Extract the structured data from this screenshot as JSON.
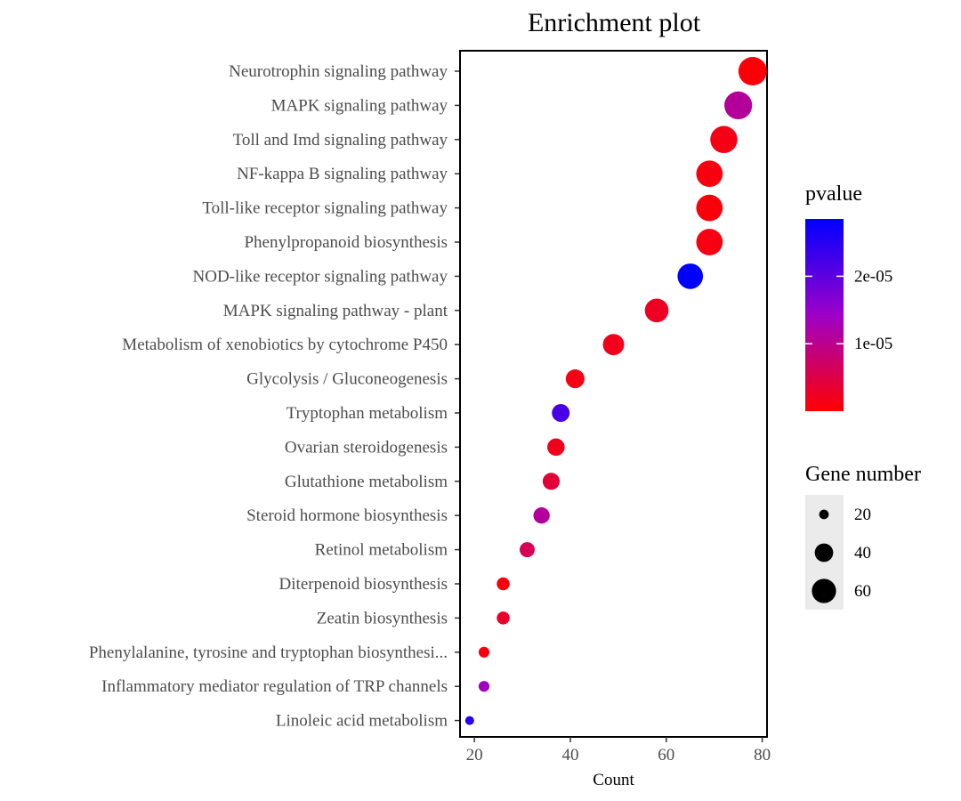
{
  "chart_data": {
    "type": "scatter",
    "title": "Enrichment plot",
    "xlabel": "Count",
    "ylabel": "",
    "xlim": [
      17,
      81
    ],
    "xticks": [
      20,
      40,
      60,
      80
    ],
    "xtick_labels": [
      "20",
      "40",
      "60",
      "80"
    ],
    "categories": [
      "Neurotrophin signaling pathway",
      "MAPK signaling pathway",
      "Toll and Imd signaling pathway",
      "NF-kappa B signaling pathway",
      "Toll-like receptor signaling pathway",
      "Phenylpropanoid biosynthesis",
      "NOD-like receptor signaling pathway",
      "MAPK signaling pathway - plant",
      "Metabolism of xenobiotics by cytochrome P450",
      "Glycolysis / Gluconeogenesis",
      "Tryptophan metabolism",
      "Ovarian steroidogenesis",
      "Glutathione metabolism",
      "Steroid hormone biosynthesis",
      "Retinol metabolism",
      "Diterpenoid biosynthesis",
      "Zeatin biosynthesis",
      "Phenylalanine, tyrosine and tryptophan biosynthesi...",
      "Inflammatory mediator regulation of TRP channels",
      "Linoleic acid metabolism"
    ],
    "counts": [
      78,
      75,
      72,
      69,
      69,
      69,
      65,
      58,
      49,
      41,
      38,
      37,
      36,
      34,
      31,
      26,
      26,
      22,
      22,
      19
    ],
    "pvalues": [
      5e-07,
      1.1e-05,
      1.5e-06,
      1e-06,
      8e-07,
      1.2e-06,
      2.85e-05,
      2.5e-06,
      2e-06,
      1.5e-06,
      2.2e-05,
      2e-06,
      4e-06,
      1.1e-05,
      6e-06,
      1e-06,
      3e-06,
      1e-06,
      1.4e-05,
      2.5e-05
    ],
    "legend_color": {
      "title": "pvalue",
      "min": 0.0,
      "max": 2.85e-05,
      "low_color": "#ff0000",
      "mid_color": "#9d00c8",
      "high_color": "#0000ff",
      "ticks": [
        1e-05,
        2e-05
      ],
      "tick_labels": [
        "1e-05",
        "2e-05"
      ]
    },
    "legend_size": {
      "title": "Gene number",
      "values": [
        20,
        40,
        60
      ],
      "labels": [
        "20",
        "40",
        "60"
      ],
      "size_min_count": 19,
      "size_max_count": 78
    },
    "legend_position": "right",
    "grid": false
  }
}
